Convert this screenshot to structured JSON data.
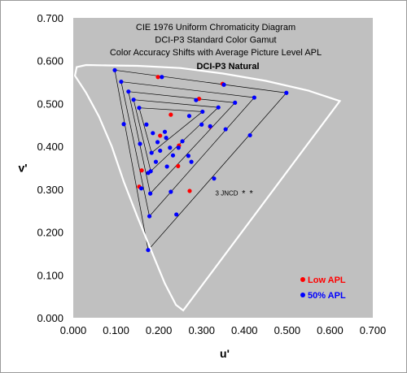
{
  "chart_data": {
    "type": "scatter",
    "title_lines": [
      "CIE 1976 Uniform Chromaticity Diagram",
      "DCI-P3 Standard Color Gamut",
      "Color Accuracy Shifts with Average Picture Level APL"
    ],
    "subtitle": "DCI-P3 Natural",
    "xlabel": "u'",
    "ylabel": "v'",
    "xlim": [
      0,
      0.7
    ],
    "ylim": [
      0,
      0.7
    ],
    "x_ticks": [
      "0.000",
      "0.100",
      "0.200",
      "0.300",
      "0.400",
      "0.500",
      "0.600",
      "0.700"
    ],
    "y_ticks": [
      "0.000",
      "0.100",
      "0.200",
      "0.300",
      "0.400",
      "0.500",
      "0.600",
      "0.700"
    ],
    "plot_background": "#c0c0c0",
    "gamut_triangles": [
      [
        [
          0.097,
          0.578
        ],
        [
          0.498,
          0.525
        ],
        [
          0.175,
          0.158
        ]
      ],
      [
        [
          0.112,
          0.551
        ],
        [
          0.423,
          0.514
        ],
        [
          0.178,
          0.237
        ]
      ],
      [
        [
          0.129,
          0.528
        ],
        [
          0.378,
          0.502
        ],
        [
          0.18,
          0.29
        ]
      ],
      [
        [
          0.141,
          0.509
        ],
        [
          0.339,
          0.491
        ],
        [
          0.181,
          0.342
        ]
      ],
      [
        [
          0.154,
          0.49
        ],
        [
          0.302,
          0.481
        ],
        [
          0.183,
          0.385
        ]
      ]
    ],
    "annotation": {
      "text": "3 JNCD",
      "x": 0.332,
      "y": 0.291,
      "star_x": [
        0.398,
        0.416
      ]
    },
    "series": [
      {
        "name": "Low APL",
        "color": "#ff0000",
        "x": [
          0.349,
          0.198,
          0.247,
          0.245,
          0.32,
          0.272,
          0.154,
          0.16,
          0.203,
          0.228,
          0.294
        ],
        "y": [
          0.546,
          0.562,
          0.402,
          0.354,
          0.446,
          0.296,
          0.306,
          0.344,
          0.425,
          0.474,
          0.511
        ]
      },
      {
        "name": "50% APL",
        "color": "#0000ff",
        "x": [
          0.097,
          0.112,
          0.129,
          0.141,
          0.154,
          0.118,
          0.207,
          0.352,
          0.498,
          0.423,
          0.378,
          0.339,
          0.302,
          0.171,
          0.156,
          0.186,
          0.197,
          0.217,
          0.203,
          0.226,
          0.287,
          0.255,
          0.269,
          0.175,
          0.178,
          0.18,
          0.181,
          0.183,
          0.159,
          0.175,
          0.193,
          0.219,
          0.233,
          0.241,
          0.228,
          0.276,
          0.246,
          0.214,
          0.329,
          0.413,
          0.356,
          0.32,
          0.3,
          0.271
        ],
        "y": [
          0.578,
          0.551,
          0.528,
          0.509,
          0.49,
          0.452,
          0.562,
          0.544,
          0.525,
          0.514,
          0.502,
          0.491,
          0.481,
          0.451,
          0.406,
          0.431,
          0.41,
          0.42,
          0.39,
          0.397,
          0.508,
          0.412,
          0.378,
          0.158,
          0.237,
          0.29,
          0.342,
          0.385,
          0.302,
          0.338,
          0.364,
          0.353,
          0.379,
          0.241,
          0.294,
          0.364,
          0.397,
          0.434,
          0.325,
          0.426,
          0.44,
          0.447,
          0.451,
          0.471
        ]
      }
    ],
    "legend_position": "bottom-right",
    "legend": [
      {
        "label": "Low APL",
        "color": "#ff0000"
      },
      {
        "label": "50% APL",
        "color": "#0000ff"
      }
    ],
    "spectral_locus": [
      [
        0.257,
        0.017
      ],
      [
        0.24,
        0.03
      ],
      [
        0.214,
        0.08
      ],
      [
        0.185,
        0.15
      ],
      [
        0.15,
        0.235
      ],
      [
        0.118,
        0.318
      ],
      [
        0.09,
        0.4
      ],
      [
        0.06,
        0.47
      ],
      [
        0.03,
        0.525
      ],
      [
        0.004,
        0.565
      ],
      [
        0.008,
        0.585
      ],
      [
        0.03,
        0.59
      ],
      [
        0.08,
        0.589
      ],
      [
        0.15,
        0.588
      ],
      [
        0.25,
        0.583
      ],
      [
        0.35,
        0.57
      ],
      [
        0.45,
        0.553
      ],
      [
        0.55,
        0.53
      ],
      [
        0.623,
        0.506
      ]
    ]
  }
}
